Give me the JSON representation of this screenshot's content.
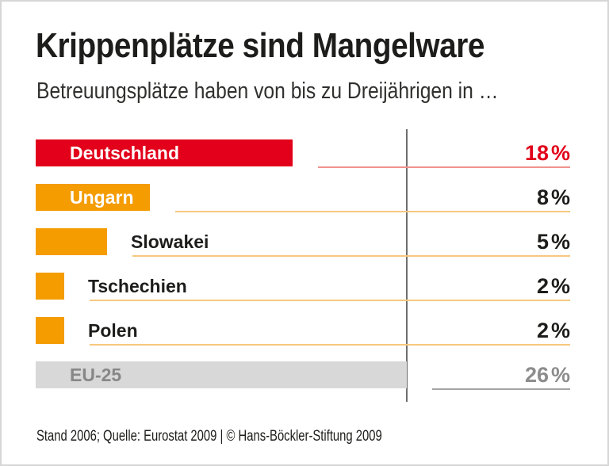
{
  "header": {
    "title": "Krippenplätze sind Mangelware",
    "subtitle": "Betreuungsplätze haben von bis zu Dreijährigen in …"
  },
  "footer": {
    "source_note": "Stand 2006; Quelle: Eurostat 2009 | © Hans-Böckler-Stiftung 2009"
  },
  "colors": {
    "red": "#e2001a",
    "orange": "#f49c00",
    "gray_bar": "#d8d8d8",
    "gray_text": "#878787",
    "underline_red": "#f0938c",
    "underline_orange": "#f7c87f",
    "underline_gray": "#a5a5a5",
    "reference_line": "#6f6f6f",
    "text": "#1d1d1b",
    "bar_label_inside": "#ffffff",
    "frame_border": "#d6d6d6"
  },
  "chart_data": {
    "type": "bar",
    "orientation": "horizontal",
    "title": "Krippenplätze sind Mangelware",
    "subtitle": "Betreuungsplätze haben von bis zu Dreijährigen in …",
    "value_unit": "%",
    "categories": [
      "Deutschland",
      "Ungarn",
      "Slowakei",
      "Tschechien",
      "Polen",
      "EU-25"
    ],
    "values": [
      18,
      8,
      5,
      2,
      2,
      26
    ],
    "reference_line_value": 26,
    "grid": false,
    "value_labels_shown": true,
    "rows": [
      {
        "label": "Deutschland",
        "value": "18",
        "unit": "%",
        "numeric": 18,
        "bar_color": "#e2001a",
        "label_inside": true,
        "label_color": "#ffffff",
        "value_color": "#e2001a",
        "underline_color": "#f0938c"
      },
      {
        "label": "Ungarn",
        "value": "8",
        "unit": "%",
        "numeric": 8,
        "bar_color": "#f49c00",
        "label_inside": true,
        "label_color": "#ffffff",
        "value_color": "#1d1d1b",
        "underline_color": "#f7c87f"
      },
      {
        "label": "Slowakei",
        "value": "5",
        "unit": "%",
        "numeric": 5,
        "bar_color": "#f49c00",
        "label_inside": false,
        "label_color": "#1d1d1b",
        "value_color": "#1d1d1b",
        "underline_color": "#f7c87f"
      },
      {
        "label": "Tschechien",
        "value": "2",
        "unit": "%",
        "numeric": 2,
        "bar_color": "#f49c00",
        "label_inside": false,
        "label_color": "#1d1d1b",
        "value_color": "#1d1d1b",
        "underline_color": "#f7c87f"
      },
      {
        "label": "Polen",
        "value": "2",
        "unit": "%",
        "numeric": 2,
        "bar_color": "#f49c00",
        "label_inside": false,
        "label_color": "#1d1d1b",
        "value_color": "#1d1d1b",
        "underline_color": "#f7c87f"
      },
      {
        "label": "EU-25",
        "value": "26",
        "unit": "%",
        "numeric": 26,
        "bar_color": "#d8d8d8",
        "label_inside": true,
        "label_color": "#878787",
        "value_color": "#8c8c8c",
        "underline_color": "#a5a5a5"
      }
    ]
  }
}
